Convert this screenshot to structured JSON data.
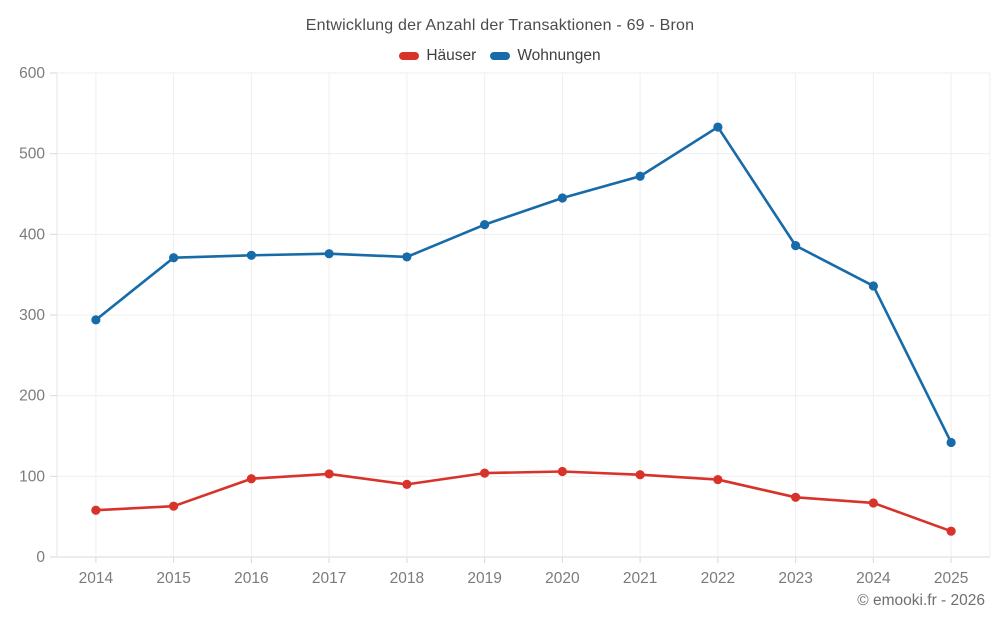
{
  "header": {
    "title": "Entwicklung der Anzahl der Transaktionen - 69 - Bron"
  },
  "footer": {
    "copyright": "© emooki.fr - 2026"
  },
  "colors": {
    "haeuser_red": "#d8332b",
    "wohnungen_blue": "#176ba8",
    "grid_line": "#efefef",
    "axis_line": "#d9d9d9",
    "tick_label": "#7b7b7b",
    "title_text": "#4c4c4c"
  },
  "chart_data": {
    "type": "line",
    "title": "Entwicklung der Anzahl der Transaktionen - 69 - Bron",
    "xlabel": "",
    "ylabel": "",
    "categories": [
      "2014",
      "2015",
      "2016",
      "2017",
      "2018",
      "2019",
      "2020",
      "2021",
      "2022",
      "2023",
      "2024",
      "2025"
    ],
    "series": [
      {
        "name": "Häuser",
        "color": "#d8332b",
        "values": [
          58,
          63,
          97,
          103,
          90,
          104,
          106,
          102,
          96,
          74,
          67,
          32
        ]
      },
      {
        "name": "Wohnungen",
        "color": "#176ba8",
        "values": [
          294,
          371,
          374,
          376,
          372,
          412,
          445,
          472,
          533,
          386,
          336,
          142
        ]
      }
    ],
    "ylim": [
      0,
      600
    ],
    "yticks": [
      0,
      100,
      200,
      300,
      400,
      500,
      600
    ],
    "grid": true,
    "legend_position": "top"
  }
}
